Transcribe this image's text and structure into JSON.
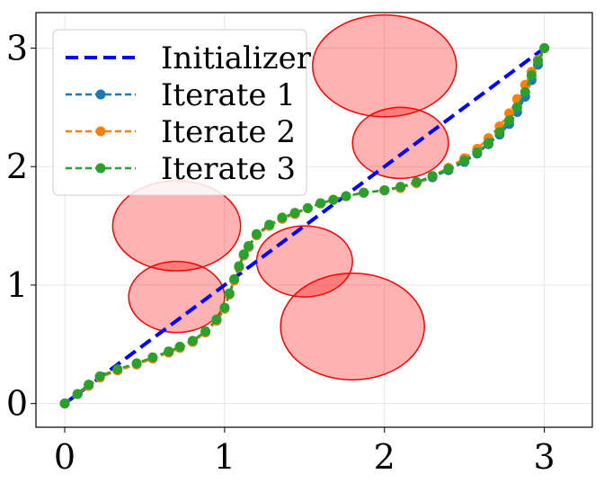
{
  "chart_data": {
    "type": "line",
    "title": "",
    "xlabel": "",
    "ylabel": "",
    "xlim": [
      -0.18,
      3.3
    ],
    "ylim": [
      -0.2,
      3.3
    ],
    "xticks": [
      0,
      1,
      2,
      3
    ],
    "yticks": [
      0,
      1,
      2,
      3
    ],
    "grid": true,
    "legend_position": "top-left",
    "obstacles": [
      {
        "center": [
          0.7,
          1.5
        ],
        "radius_x": 0.4,
        "radius_y": 0.38
      },
      {
        "center": [
          0.7,
          0.9
        ],
        "radius_x": 0.3,
        "radius_y": 0.3
      },
      {
        "center": [
          1.5,
          1.2
        ],
        "radius_x": 0.3,
        "radius_y": 0.3
      },
      {
        "center": [
          1.8,
          0.65
        ],
        "radius_x": 0.45,
        "radius_y": 0.45
      },
      {
        "center": [
          2.0,
          2.85
        ],
        "radius_x": 0.45,
        "radius_y": 0.43
      },
      {
        "center": [
          2.1,
          2.2
        ],
        "radius_x": 0.3,
        "radius_y": 0.3
      }
    ],
    "series": [
      {
        "name": "Initializer",
        "color": "#0000ff",
        "style": "dashed",
        "markers": false,
        "x": [
          0,
          3
        ],
        "y": [
          0,
          3
        ]
      },
      {
        "name": "Iterate 1",
        "color": "#1f77b4",
        "style": "dashed",
        "markers": true,
        "x": [
          0,
          0.08,
          0.15,
          0.22,
          0.33,
          0.45,
          0.55,
          0.65,
          0.72,
          0.8,
          0.88,
          0.95,
          1.0,
          1.03,
          1.06,
          1.09,
          1.12,
          1.15,
          1.2,
          1.28,
          1.36,
          1.44,
          1.52,
          1.6,
          1.68,
          1.76,
          1.87,
          2.0,
          2.1,
          2.2,
          2.3,
          2.4,
          2.5,
          2.58,
          2.65,
          2.72,
          2.78,
          2.83,
          2.88,
          2.92,
          2.96,
          3.0
        ],
        "y": [
          0,
          0.08,
          0.15,
          0.22,
          0.28,
          0.33,
          0.38,
          0.43,
          0.47,
          0.52,
          0.6,
          0.7,
          0.8,
          0.92,
          1.04,
          1.15,
          1.25,
          1.32,
          1.42,
          1.5,
          1.56,
          1.6,
          1.65,
          1.69,
          1.72,
          1.75,
          1.78,
          1.8,
          1.82,
          1.86,
          1.91,
          1.97,
          2.04,
          2.11,
          2.19,
          2.27,
          2.36,
          2.46,
          2.59,
          2.73,
          2.86,
          3.0
        ]
      },
      {
        "name": "Iterate 2",
        "color": "#ff7f0e",
        "style": "dashed",
        "markers": true,
        "x": [
          0,
          0.08,
          0.15,
          0.22,
          0.33,
          0.45,
          0.55,
          0.65,
          0.72,
          0.8,
          0.88,
          0.95,
          1.0,
          1.03,
          1.06,
          1.09,
          1.12,
          1.15,
          1.2,
          1.28,
          1.36,
          1.44,
          1.52,
          1.6,
          1.68,
          1.76,
          1.87,
          2.0,
          2.1,
          2.2,
          2.3,
          2.4,
          2.5,
          2.58,
          2.65,
          2.72,
          2.78,
          2.83,
          2.88,
          2.92,
          2.96,
          3.0
        ],
        "y": [
          0,
          0.08,
          0.15,
          0.22,
          0.28,
          0.33,
          0.38,
          0.43,
          0.47,
          0.52,
          0.6,
          0.7,
          0.8,
          0.92,
          1.04,
          1.15,
          1.25,
          1.32,
          1.42,
          1.5,
          1.56,
          1.6,
          1.65,
          1.69,
          1.72,
          1.75,
          1.78,
          1.8,
          1.82,
          1.86,
          1.92,
          1.99,
          2.07,
          2.15,
          2.24,
          2.34,
          2.45,
          2.57,
          2.69,
          2.8,
          2.9,
          3.0
        ]
      },
      {
        "name": "Iterate 3",
        "color": "#2ca02c",
        "style": "dashed",
        "markers": true,
        "x": [
          0,
          0.08,
          0.15,
          0.22,
          0.33,
          0.45,
          0.55,
          0.65,
          0.72,
          0.8,
          0.88,
          0.95,
          1.0,
          1.03,
          1.06,
          1.09,
          1.12,
          1.15,
          1.2,
          1.28,
          1.36,
          1.44,
          1.52,
          1.6,
          1.68,
          1.76,
          1.87,
          2.0,
          2.1,
          2.2,
          2.3,
          2.4,
          2.5,
          2.58,
          2.65,
          2.72,
          2.78,
          2.83,
          2.88,
          2.92,
          2.96,
          3.0
        ],
        "y": [
          0,
          0.08,
          0.16,
          0.23,
          0.29,
          0.34,
          0.39,
          0.44,
          0.48,
          0.53,
          0.61,
          0.71,
          0.81,
          0.93,
          1.05,
          1.16,
          1.26,
          1.33,
          1.43,
          1.51,
          1.57,
          1.61,
          1.65,
          1.69,
          1.72,
          1.75,
          1.78,
          1.8,
          1.83,
          1.87,
          1.92,
          1.98,
          2.05,
          2.12,
          2.2,
          2.29,
          2.39,
          2.5,
          2.63,
          2.77,
          2.89,
          3.0
        ]
      }
    ]
  }
}
